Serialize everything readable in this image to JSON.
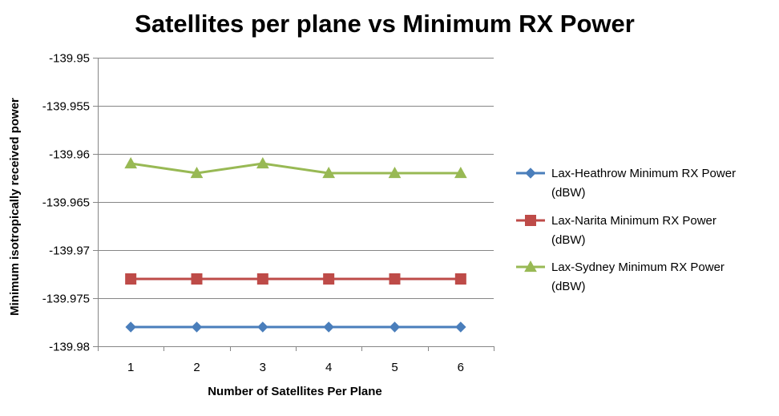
{
  "chart_data": {
    "type": "line",
    "title": "Satellites per plane vs Minimum RX Power",
    "xlabel": "Number of Satellites Per Plane",
    "ylabel": "Minimum isotropically received power",
    "x": [
      1,
      2,
      3,
      4,
      5,
      6
    ],
    "x_tick_labels": [
      "1",
      "2",
      "3",
      "4",
      "5",
      "6"
    ],
    "ylim": [
      -139.98,
      -139.95
    ],
    "y_ticks": [
      -139.95,
      -139.955,
      -139.96,
      -139.965,
      -139.97,
      -139.975,
      -139.98
    ],
    "y_tick_labels": [
      "-139.95",
      "-139.955",
      "-139.96",
      "-139.965",
      "-139.97",
      "-139.975",
      "-139.98"
    ],
    "grid": "horizontal",
    "legend_position": "right",
    "series": [
      {
        "name": "Lax-Heathrow Minimum RX Power (dBW)",
        "name_lines": [
          "Lax-Heathrow Minimum RX Power",
          "(dBW)"
        ],
        "values": [
          -139.978,
          -139.978,
          -139.978,
          -139.978,
          -139.978,
          -139.978
        ],
        "color": "#4A7EBB",
        "marker": "diamond"
      },
      {
        "name": "Lax-Narita Minimum RX Power (dBW)",
        "name_lines": [
          "Lax-Narita Minimum RX Power",
          "(dBW)"
        ],
        "values": [
          -139.973,
          -139.973,
          -139.973,
          -139.973,
          -139.973,
          -139.973
        ],
        "color": "#BE4B48",
        "marker": "square"
      },
      {
        "name": "Lax-Sydney Minimum RX Power (dBW)",
        "name_lines": [
          "Lax-Sydney Minimum RX Power",
          "(dBW)"
        ],
        "values": [
          -139.961,
          -139.962,
          -139.961,
          -139.962,
          -139.962,
          -139.962
        ],
        "color": "#98B954",
        "marker": "triangle"
      }
    ]
  },
  "colors": {
    "axis": "#868686",
    "grid": "#868686"
  }
}
